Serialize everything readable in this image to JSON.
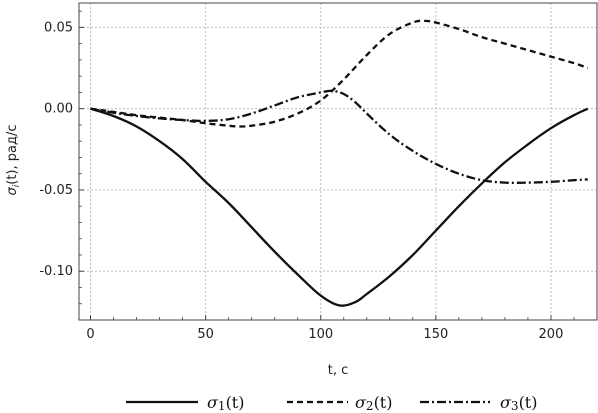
{
  "chart_data": {
    "type": "line",
    "xlabel": "t, c",
    "ylabel": "σi(t), рад/с",
    "xlim": [
      -5,
      220
    ],
    "ylim": [
      -0.13,
      0.065
    ],
    "xticks": [
      0,
      50,
      100,
      150,
      200
    ],
    "xtick_labels": [
      "0",
      "50",
      "100",
      "150",
      "200"
    ],
    "yticks": [
      0.05,
      0.0,
      -0.05,
      -0.1
    ],
    "ytick_labels": [
      "0.05",
      "0.00",
      "-0.05",
      "-0.10"
    ],
    "grid": true,
    "legend_position": "bottom",
    "series": [
      {
        "name": "σ1(t)",
        "dash": "solid",
        "x": [
          0,
          10,
          20,
          30,
          40,
          50,
          60,
          70,
          80,
          90,
          100,
          108,
          115,
          120,
          130,
          140,
          150,
          160,
          170,
          180,
          190,
          200,
          210,
          216
        ],
        "y": [
          0.0,
          -0.0045,
          -0.011,
          -0.02,
          -0.031,
          -0.045,
          -0.058,
          -0.073,
          -0.088,
          -0.102,
          -0.115,
          -0.121,
          -0.119,
          -0.114,
          -0.103,
          -0.09,
          -0.075,
          -0.06,
          -0.046,
          -0.033,
          -0.022,
          -0.012,
          -0.004,
          0.0
        ]
      },
      {
        "name": "σ2(t)",
        "dash": "dashed",
        "x": [
          0,
          10,
          20,
          30,
          40,
          50,
          60,
          65,
          70,
          80,
          90,
          100,
          110,
          120,
          130,
          140,
          145,
          150,
          160,
          170,
          180,
          190,
          200,
          210,
          216
        ],
        "y": [
          0.0,
          -0.002,
          -0.004,
          -0.0055,
          -0.007,
          -0.009,
          -0.0105,
          -0.011,
          -0.0105,
          -0.008,
          -0.003,
          0.005,
          0.018,
          0.033,
          0.046,
          0.053,
          0.054,
          0.053,
          0.049,
          0.044,
          0.04,
          0.036,
          0.032,
          0.028,
          0.025
        ]
      },
      {
        "name": "σ3(t)",
        "dash": "dashdot",
        "x": [
          0,
          10,
          20,
          30,
          40,
          50,
          60,
          70,
          80,
          90,
          100,
          105,
          110,
          115,
          120,
          130,
          140,
          150,
          160,
          170,
          180,
          190,
          200,
          210,
          216
        ],
        "y": [
          0.0,
          -0.0025,
          -0.0045,
          -0.006,
          -0.007,
          -0.0075,
          -0.0065,
          -0.003,
          0.002,
          0.007,
          0.01,
          0.011,
          0.009,
          0.004,
          -0.003,
          -0.016,
          -0.026,
          -0.034,
          -0.04,
          -0.044,
          -0.0455,
          -0.0455,
          -0.045,
          -0.044,
          -0.0435
        ]
      }
    ]
  },
  "colors": {
    "line": "#111111",
    "grid": "#bdbdbd",
    "frame": "#444444",
    "background": "#ffffff"
  }
}
